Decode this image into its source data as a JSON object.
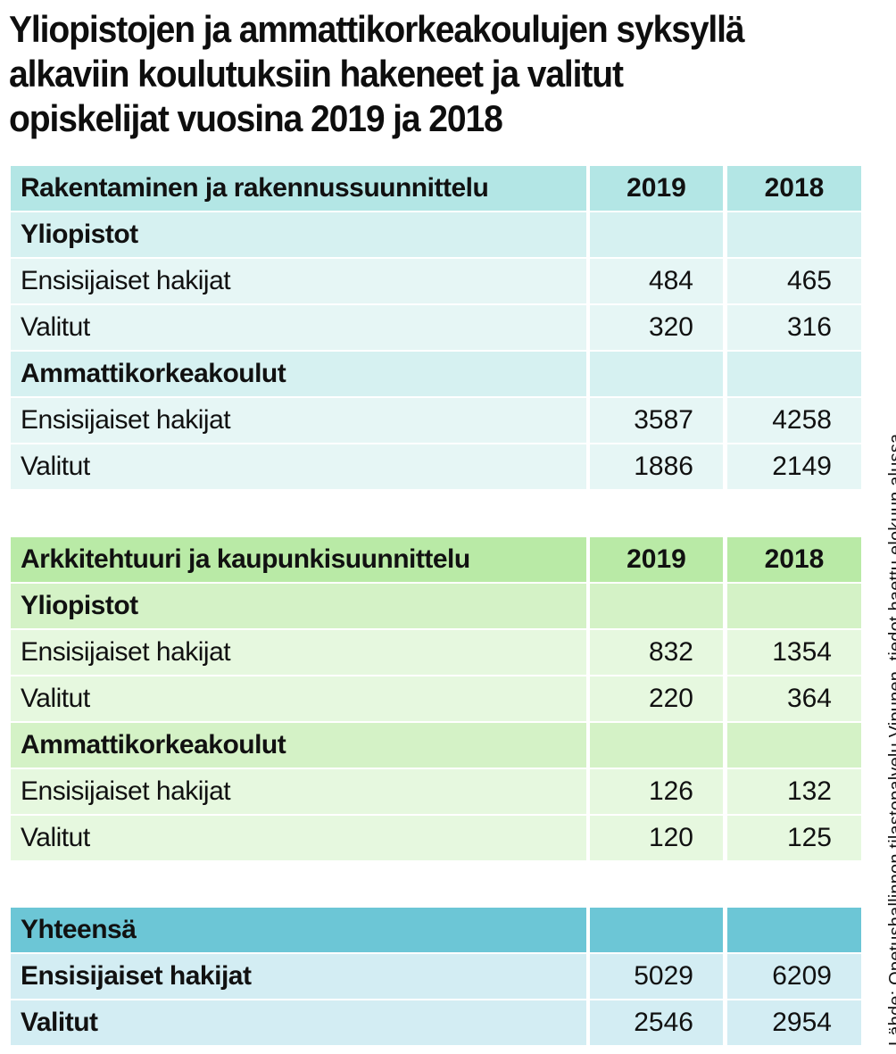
{
  "title": "Yliopistojen ja ammattikorkeakoulujen syksyllä alkaviin koulutuksiin hakeneet ja valitut opiskelijat vuosina 2019 ja 2018",
  "colors": {
    "table1_header": "#b3e6e5",
    "table1_subheader": "#d6f1f1",
    "table1_row": "#e6f6f5",
    "table2_header": "#b9eaa6",
    "table2_subheader": "#d4f2c6",
    "table2_row": "#e6f8df",
    "table3_header": "#6cc6d6",
    "table3_row": "#d3edf3"
  },
  "tables": [
    {
      "header": {
        "label": "Rakentaminen ja rakennussuunnittelu",
        "col2019": "2019",
        "col2018": "2018"
      },
      "groups": [
        {
          "label": "Yliopistot",
          "rows": [
            {
              "label": "Ensisijaiset hakijat",
              "v2019": "484",
              "v2018": "465"
            },
            {
              "label": "Valitut",
              "v2019": "320",
              "v2018": "316"
            }
          ]
        },
        {
          "label": "Ammattikorkeakoulut",
          "rows": [
            {
              "label": "Ensisijaiset hakijat",
              "v2019": "3587",
              "v2018": "4258"
            },
            {
              "label": "Valitut",
              "v2019": "1886",
              "v2018": "2149"
            }
          ]
        }
      ]
    },
    {
      "header": {
        "label": "Arkkitehtuuri ja kaupunkisuunnittelu",
        "col2019": "2019",
        "col2018": "2018"
      },
      "groups": [
        {
          "label": "Yliopistot",
          "rows": [
            {
              "label": "Ensisijaiset hakijat",
              "v2019": "832",
              "v2018": "1354"
            },
            {
              "label": "Valitut",
              "v2019": "220",
              "v2018": "364"
            }
          ]
        },
        {
          "label": "Ammattikorkeakoulut",
          "rows": [
            {
              "label": "Ensisijaiset hakijat",
              "v2019": "126",
              "v2018": "132"
            },
            {
              "label": "Valitut",
              "v2019": "120",
              "v2018": "125"
            }
          ]
        }
      ]
    }
  ],
  "totals": {
    "header": "Yhteensä",
    "rows": [
      {
        "label": "Ensisijaiset hakijat",
        "v2019": "5029",
        "v2018": "6209"
      },
      {
        "label": "Valitut",
        "v2019": "2546",
        "v2018": "2954"
      }
    ]
  },
  "source": "Lähde: Opetushallinnon tilastopalvelu Vipunen, tiedot haettu elokuun alussa"
}
